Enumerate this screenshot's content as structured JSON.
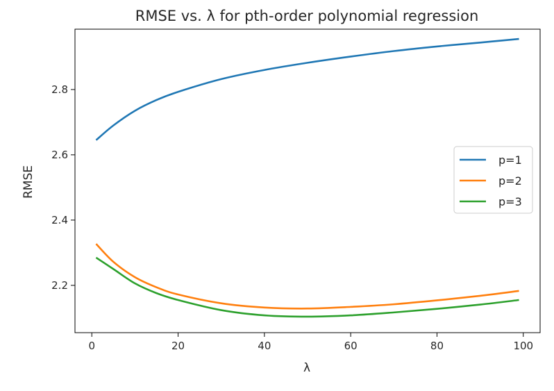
{
  "chart_data": {
    "type": "line",
    "title": "RMSE vs. λ for pth-order polynomial regression",
    "xlabel": "λ",
    "ylabel": "RMSE",
    "xlim": [
      -3.9,
      103.9
    ],
    "ylim": [
      2.055,
      2.985
    ],
    "xticks": [
      0,
      20,
      40,
      60,
      80,
      100
    ],
    "yticks": [
      2.2,
      2.4,
      2.6,
      2.8
    ],
    "xtick_labels": [
      "0",
      "20",
      "40",
      "60",
      "80",
      "100"
    ],
    "ytick_labels": [
      "2.2",
      "2.4",
      "2.6",
      "2.8"
    ],
    "grid": false,
    "legend_position": "center-right",
    "series": [
      {
        "name": "p=1",
        "color": "#1f77b4",
        "x": [
          1,
          5,
          10,
          15,
          20,
          30,
          40,
          50,
          60,
          70,
          80,
          90,
          99
        ],
        "y": [
          2.645,
          2.69,
          2.735,
          2.768,
          2.793,
          2.832,
          2.86,
          2.882,
          2.901,
          2.918,
          2.932,
          2.944,
          2.955
        ]
      },
      {
        "name": "p=2",
        "color": "#ff7f0e",
        "x": [
          1,
          5,
          10,
          15,
          20,
          30,
          40,
          50,
          60,
          70,
          80,
          90,
          99
        ],
        "y": [
          2.327,
          2.272,
          2.225,
          2.194,
          2.172,
          2.145,
          2.132,
          2.129,
          2.134,
          2.142,
          2.154,
          2.168,
          2.183
        ]
      },
      {
        "name": "p=3",
        "color": "#2ca02c",
        "x": [
          1,
          5,
          10,
          15,
          20,
          30,
          40,
          50,
          60,
          70,
          80,
          90,
          99
        ],
        "y": [
          2.285,
          2.25,
          2.206,
          2.176,
          2.155,
          2.124,
          2.108,
          2.104,
          2.108,
          2.117,
          2.128,
          2.141,
          2.155
        ]
      }
    ]
  }
}
